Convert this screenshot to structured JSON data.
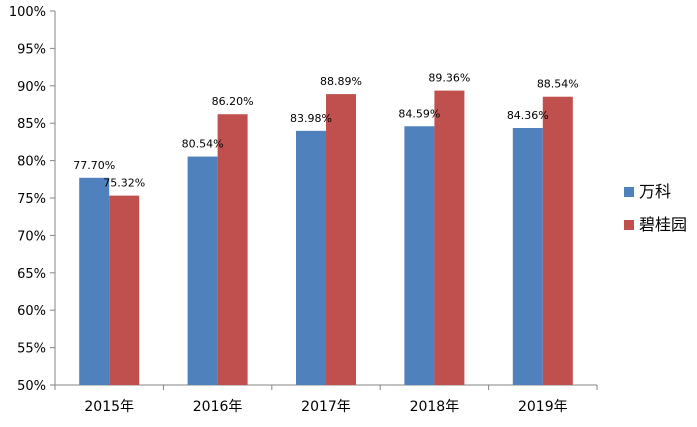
{
  "chart_data": {
    "type": "bar",
    "title": "",
    "xlabel": "",
    "ylabel": "",
    "categories": [
      "2015年",
      "2016年",
      "2017年",
      "2018年",
      "2019年"
    ],
    "series": [
      {
        "name": "万科",
        "color": "#4F81BD",
        "values": [
          77.7,
          80.54,
          83.98,
          84.59,
          84.36
        ],
        "labels": [
          "77.70%",
          "80.54%",
          "83.98%",
          "84.59%",
          "84.36%"
        ]
      },
      {
        "name": "碧桂园",
        "color": "#C0504D",
        "values": [
          75.32,
          86.2,
          88.89,
          89.36,
          88.54
        ],
        "labels": [
          "75.32%",
          "86.20%",
          "88.89%",
          "89.36%",
          "88.54%"
        ]
      }
    ],
    "ylim": [
      50,
      100
    ],
    "yticks": [
      50,
      55,
      60,
      65,
      70,
      75,
      80,
      85,
      90,
      95,
      100
    ],
    "ytick_labels": [
      "50%",
      "55%",
      "60%",
      "65%",
      "70%",
      "75%",
      "80%",
      "85%",
      "90%",
      "95%",
      "100%"
    ],
    "grid": false,
    "legend_position": "right"
  }
}
